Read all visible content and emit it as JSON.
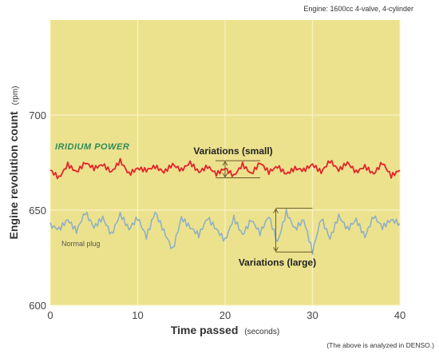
{
  "header": {
    "engine_note": "Engine:  1600cc 4-valve, 4-cylinder"
  },
  "footer": {
    "source_note": "(The above is analyzed in DENSO.)"
  },
  "chart_data": {
    "type": "line",
    "title": "",
    "xlabel": "Time passed",
    "xlabel_unit": "(seconds)",
    "ylabel": "Engine revolution count",
    "ylabel_unit": "(rpm)",
    "xlim": [
      0,
      40
    ],
    "ylim": [
      600,
      750
    ],
    "x_ticks": [
      "0",
      "10",
      "20",
      "30",
      "40"
    ],
    "y_ticks": [
      "600",
      "650",
      "700"
    ],
    "grid": true,
    "background_color": "#ece28e",
    "grid_color": "#f8f2c4",
    "series": [
      {
        "name": "IRIDIUM POWER",
        "color": "#e4232a",
        "x": [
          0,
          1,
          2,
          3,
          4,
          5,
          6,
          7,
          8,
          9,
          10,
          11,
          12,
          13,
          14,
          15,
          16,
          17,
          18,
          19,
          20,
          21,
          22,
          23,
          24,
          25,
          26,
          27,
          28,
          29,
          30,
          31,
          32,
          33,
          34,
          35,
          36,
          37,
          38,
          39,
          40
        ],
        "y": [
          671,
          667,
          674,
          670,
          675,
          672,
          674,
          670,
          676,
          669,
          672,
          671,
          673,
          670,
          674,
          671,
          675,
          670,
          673,
          669,
          672,
          668,
          674,
          669,
          675,
          670,
          673,
          669,
          672,
          671,
          674,
          670,
          676,
          671,
          675,
          670,
          673,
          669,
          675,
          668,
          671
        ]
      },
      {
        "name": "Normal plug",
        "color": "#8fb0c4",
        "x": [
          0,
          1,
          2,
          3,
          4,
          5,
          6,
          7,
          8,
          9,
          10,
          11,
          12,
          13,
          14,
          15,
          16,
          17,
          18,
          19,
          20,
          21,
          22,
          23,
          24,
          25,
          26,
          27,
          28,
          29,
          30,
          31,
          32,
          33,
          34,
          35,
          36,
          37,
          38,
          39,
          40
        ],
        "y": [
          642,
          640,
          645,
          639,
          649,
          641,
          646,
          637,
          648,
          640,
          646,
          636,
          649,
          639,
          629,
          646,
          641,
          637,
          646,
          640,
          634,
          646,
          637,
          645,
          638,
          647,
          633,
          649,
          640,
          645,
          628,
          646,
          635,
          647,
          640,
          645,
          636,
          647,
          641,
          645,
          643
        ]
      }
    ],
    "annotations": [
      {
        "text": "Variations (small)",
        "y_range": [
          667,
          676
        ],
        "x": 20
      },
      {
        "text": "Variations (large)",
        "y_range": [
          628,
          651
        ],
        "x": 30
      }
    ]
  }
}
